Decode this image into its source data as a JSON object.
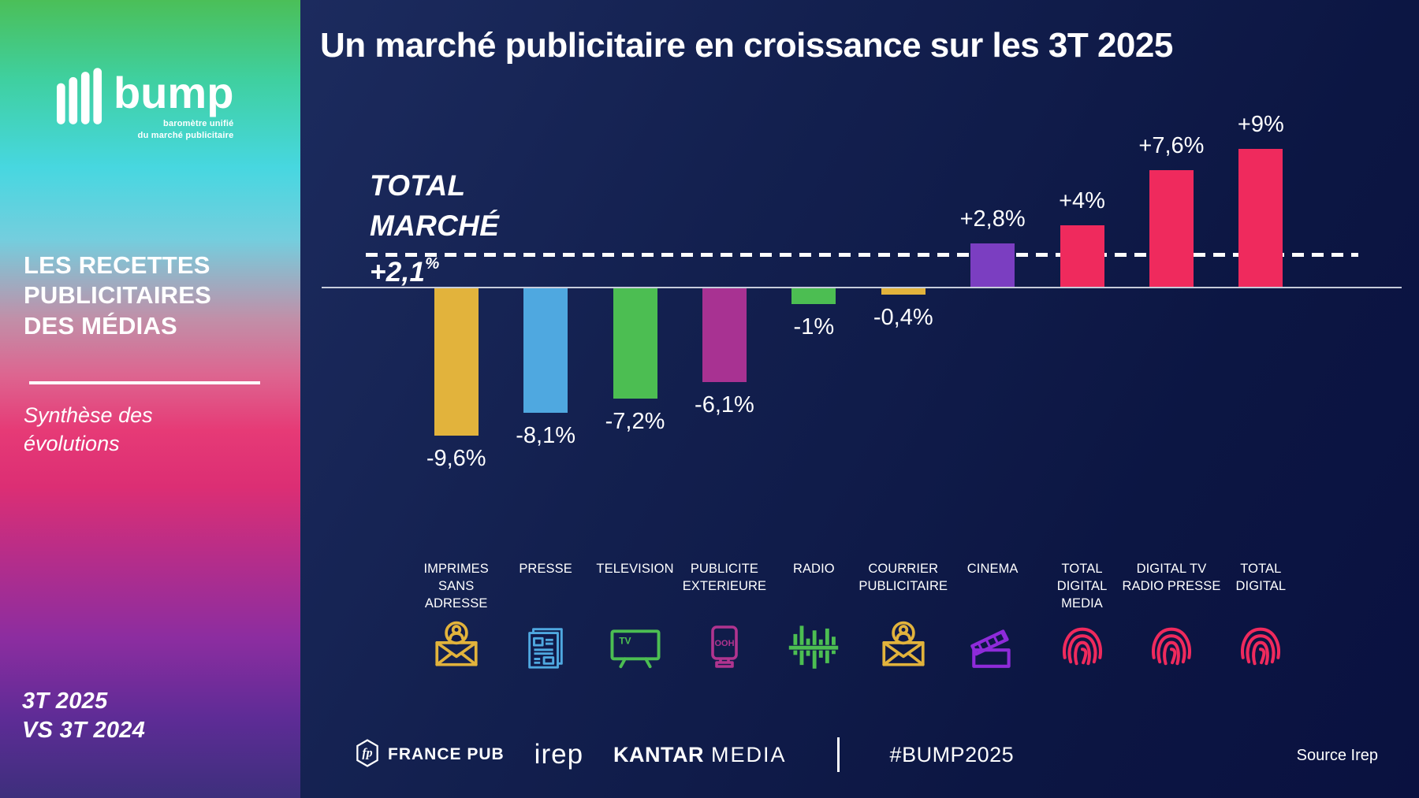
{
  "sidebar": {
    "logo_text": "bump",
    "logo_tagline_lines": [
      "baromètre unifié",
      "du marché publicitaire"
    ],
    "heading_lines": [
      "LES RECETTES",
      "PUBLICITAIRES",
      "DES MÉDIAS"
    ],
    "subtitle_lines": [
      "Synthèse des",
      "évolutions"
    ],
    "period_lines": [
      "3T 2025",
      "VS 3T 2024"
    ]
  },
  "main": {
    "title": "Un marché publicitaire en croissance sur les 3T 2025",
    "source": "Source Irep",
    "footer": {
      "fp_monogram": "fp",
      "france_pub": "FRANCE PUB",
      "irep": "irep",
      "kantar": "KANTAR",
      "media": "MEDIA",
      "hashtag": "#BUMP2025"
    }
  },
  "chart_data": {
    "type": "bar",
    "title": "Un marché publicitaire en croissance sur les 3T 2025",
    "unit": "% evolution",
    "comparison": "3T 2025 vs 3T 2024",
    "ylim": [
      -10,
      10
    ],
    "grid": false,
    "legend": false,
    "reference_line": {
      "label_lines": [
        "TOTAL",
        "MARCHÉ"
      ],
      "value": 2.1,
      "value_label": "+2,1%"
    },
    "categories": [
      "IMPRIMES SANS ADRESSE",
      "PRESSE",
      "TELEVISION",
      "PUBLICITE EXTERIEURE",
      "RADIO",
      "COURRIER PUBLICITAIRE",
      "CINEMA",
      "TOTAL DIGITAL MEDIA",
      "DIGITAL TV RADIO PRESSE",
      "TOTAL DIGITAL"
    ],
    "category_label_lines": [
      [
        "IMPRIMES",
        "SANS",
        "ADRESSE"
      ],
      [
        "PRESSE"
      ],
      [
        "TELEVISION"
      ],
      [
        "PUBLICITE",
        "EXTERIEURE"
      ],
      [
        "RADIO"
      ],
      [
        "COURRIER",
        "PUBLICITAIRE"
      ],
      [
        "CINEMA"
      ],
      [
        "TOTAL",
        "DIGITAL",
        "MEDIA"
      ],
      [
        "DIGITAL TV",
        "RADIO PRESSE"
      ],
      [
        "TOTAL",
        "DIGITAL"
      ]
    ],
    "values": [
      -9.6,
      -8.1,
      -7.2,
      -6.1,
      -1,
      -0.4,
      2.8,
      4,
      7.6,
      9
    ],
    "value_labels": [
      "-9,6%",
      "-8,1%",
      "-7,2%",
      "-6,1%",
      "-1%",
      "-0,4%",
      "+2,8%",
      "+4%",
      "+7,6%",
      "+9%"
    ],
    "bar_colors": [
      "#E2B33C",
      "#4FA8E0",
      "#4CBE52",
      "#A83292",
      "#4CBE52",
      "#E2B33C",
      "#7B3EC1",
      "#EF2A5D",
      "#EF2A5D",
      "#EF2A5D"
    ],
    "icons": [
      "mail-user",
      "newspaper",
      "tv",
      "billboard",
      "equalizer",
      "mail-user",
      "clapperboard",
      "fingerprint",
      "fingerprint",
      "fingerprint"
    ],
    "icon_colors": [
      "#E2B33C",
      "#4FA8E0",
      "#4CBE52",
      "#B0348F",
      "#4CBE52",
      "#E2B33C",
      "#8E2BD9",
      "#EF2A5D",
      "#EF2A5D",
      "#EF2A5D"
    ],
    "icon_texts": {
      "tv": "TV",
      "billboard": "OOH"
    }
  }
}
